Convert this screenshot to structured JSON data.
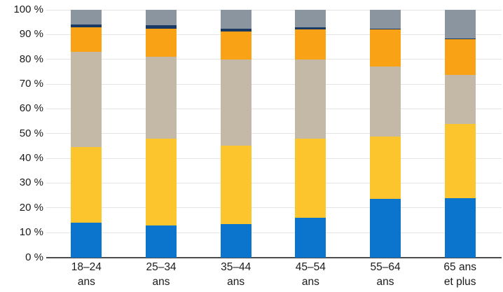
{
  "chart_data": {
    "type": "bar",
    "stacked": true,
    "percent_stacked": true,
    "title": "",
    "xlabel": "",
    "ylabel": "",
    "unit": "%",
    "grid": "horizontal",
    "legend": "none",
    "ylim": [
      0,
      100
    ],
    "ytick_step": 10,
    "yticks": [
      "0 %",
      "10 %",
      "20 %",
      "30 %",
      "40 %",
      "50 %",
      "60 %",
      "70 %",
      "80 %",
      "90 %",
      "100 %"
    ],
    "categories": [
      "18–24 ans",
      "25–34 ans",
      "35–44 ans",
      "45–54 ans",
      "55–64 ans",
      "65 ans et plus"
    ],
    "category_lines": [
      [
        "18–24",
        "ans"
      ],
      [
        "25–34",
        "ans"
      ],
      [
        "35–44",
        "ans"
      ],
      [
        "45–54",
        "ans"
      ],
      [
        "55–64",
        "ans"
      ],
      [
        "65 ans",
        "et plus"
      ]
    ],
    "series": [
      {
        "name": "segment-bleu",
        "color": "#0b74cd",
        "values": [
          14.0,
          13.0,
          13.5,
          16.0,
          23.5,
          24.0
        ]
      },
      {
        "name": "segment-jaune",
        "color": "#fdc52d",
        "values": [
          30.5,
          35.0,
          31.5,
          32.0,
          25.2,
          30.0
        ]
      },
      {
        "name": "segment-beige",
        "color": "#c4b8a7",
        "values": [
          38.5,
          33.0,
          35.0,
          32.0,
          28.3,
          19.6
        ]
      },
      {
        "name": "segment-orange",
        "color": "#faa216",
        "values": [
          10.0,
          11.5,
          11.3,
          12.0,
          15.0,
          14.4
        ]
      },
      {
        "name": "segment-bleu-marine",
        "color": "#1a3a63",
        "values": [
          1.0,
          1.2,
          1.2,
          1.0,
          0.5,
          0.5
        ]
      },
      {
        "name": "segment-gris",
        "color": "#8b95a0",
        "values": [
          6.0,
          6.3,
          7.5,
          7.0,
          7.5,
          11.5
        ]
      }
    ]
  },
  "style": {
    "gridline_color": "#e4e4e4",
    "axis_line_color": "#4d4d4d",
    "text_color": "#1a1a1a",
    "background": "#ffffff"
  }
}
